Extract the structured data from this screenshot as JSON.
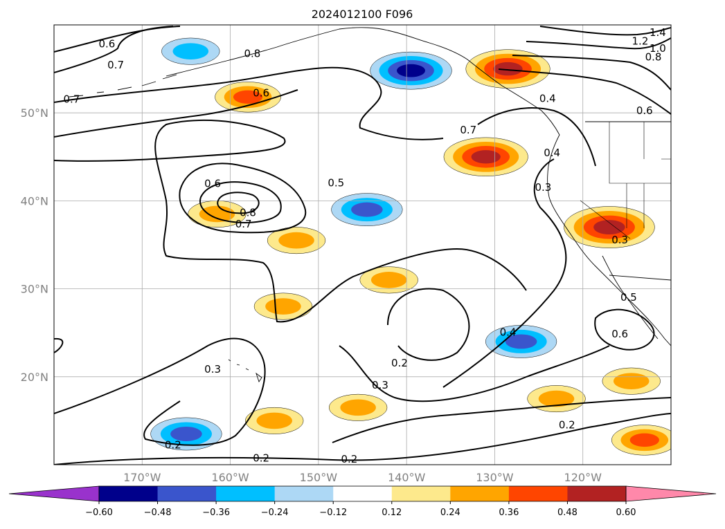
{
  "chart_data": {
    "type": "heatmap",
    "title": "2024012100 F096",
    "map": {
      "projection": "PlateCarree",
      "lon_range": [
        -180,
        -110
      ],
      "lat_range": [
        10,
        60
      ],
      "coastlines": true,
      "borders": true,
      "grid": true
    },
    "lat_ticks": [
      {
        "value": 20,
        "label": "20°N"
      },
      {
        "value": 30,
        "label": "30°N"
      },
      {
        "value": 40,
        "label": "40°N"
      },
      {
        "value": 50,
        "label": "50°N"
      }
    ],
    "lon_ticks": [
      {
        "value": -170,
        "label": "170°W"
      },
      {
        "value": -160,
        "label": "160°W"
      },
      {
        "value": -150,
        "label": "150°W"
      },
      {
        "value": -140,
        "label": "140°W"
      },
      {
        "value": -130,
        "label": "130°W"
      },
      {
        "value": -120,
        "label": "120°W"
      }
    ],
    "colorbar": {
      "extend": "both",
      "levels": [
        -0.72,
        -0.6,
        -0.48,
        -0.36,
        -0.24,
        -0.12,
        0.12,
        0.24,
        0.36,
        0.48,
        0.6,
        0.72
      ],
      "colors": [
        "#9932cc",
        "#00008b",
        "#3a55cc",
        "#00bfff",
        "#add8f5",
        "#ffffff",
        "#fde98c",
        "#ffa500",
        "#ff4500",
        "#b22222",
        "#ff88aa"
      ],
      "tick_labels": [
        "−0.60",
        "−0.48",
        "−0.36",
        "−0.24",
        "−0.12",
        "0.12",
        "0.24",
        "0.36",
        "0.48",
        "0.60"
      ]
    },
    "filled_anomalies": [
      {
        "lon": -158,
        "lat": 51.8,
        "value": 0.36
      },
      {
        "lon": -139.5,
        "lat": 54.8,
        "value": -0.48
      },
      {
        "lon": -131,
        "lat": 45,
        "value": 0.5
      },
      {
        "lon": -128.5,
        "lat": 55,
        "value": 0.5
      },
      {
        "lon": -144.5,
        "lat": 39,
        "value": -0.4
      },
      {
        "lon": -127,
        "lat": 24,
        "value": -0.4
      },
      {
        "lon": -117,
        "lat": 37,
        "value": 0.55
      },
      {
        "lon": -165,
        "lat": 13.5,
        "value": -0.4
      },
      {
        "lon": -142,
        "lat": 31,
        "value": 0.3
      },
      {
        "lon": -113,
        "lat": 12.8,
        "value": 0.36
      },
      {
        "lon": -114.5,
        "lat": 19.5,
        "value": 0.3
      },
      {
        "lon": -154,
        "lat": 28,
        "value": 0.3
      },
      {
        "lon": -145.5,
        "lat": 16.5,
        "value": 0.3
      },
      {
        "lon": -164.5,
        "lat": 57,
        "value": -0.3
      },
      {
        "lon": -161.5,
        "lat": 38.5,
        "value": 0.3
      },
      {
        "lon": -152.5,
        "lat": 35.5,
        "value": 0.3
      },
      {
        "lon": -155,
        "lat": 15,
        "value": 0.3
      },
      {
        "lon": -123,
        "lat": 17.5,
        "value": 0.3
      }
    ],
    "contour_labels": [
      {
        "text": "1.4",
        "lon": -111.5,
        "lat": 59.1
      },
      {
        "text": "1.2",
        "lon": -113.5,
        "lat": 58.1
      },
      {
        "text": "1.0",
        "lon": -111.5,
        "lat": 57.3
      },
      {
        "text": "0.8",
        "lon": -112,
        "lat": 56.3
      },
      {
        "text": "0.6",
        "lon": -174,
        "lat": 57.8
      },
      {
        "text": "0.7",
        "lon": -173,
        "lat": 55.4
      },
      {
        "text": "0.8",
        "lon": -157.5,
        "lat": 56.7
      },
      {
        "text": "0.7",
        "lon": -178,
        "lat": 51.5
      },
      {
        "text": "0.6",
        "lon": -156.5,
        "lat": 52.2
      },
      {
        "text": "0.7",
        "lon": -133,
        "lat": 48
      },
      {
        "text": "0.4",
        "lon": -124,
        "lat": 51.6
      },
      {
        "text": "0.6",
        "lon": -113,
        "lat": 50.2
      },
      {
        "text": "0.4",
        "lon": -123.5,
        "lat": 45.4
      },
      {
        "text": "0.3",
        "lon": -124.5,
        "lat": 41.5
      },
      {
        "text": "0.6",
        "lon": -162,
        "lat": 41.9
      },
      {
        "text": "0.5",
        "lon": -148,
        "lat": 42
      },
      {
        "text": "0.8",
        "lon": -158,
        "lat": 38.6
      },
      {
        "text": "0.7",
        "lon": -158.5,
        "lat": 37.3
      },
      {
        "text": "0.3",
        "lon": -115.8,
        "lat": 35.5
      },
      {
        "text": "0.5",
        "lon": -114.8,
        "lat": 29
      },
      {
        "text": "0.6",
        "lon": -115.8,
        "lat": 24.8
      },
      {
        "text": "0.4",
        "lon": -128.5,
        "lat": 25
      },
      {
        "text": "0.2",
        "lon": -140.8,
        "lat": 21.5
      },
      {
        "text": "0.3",
        "lon": -162,
        "lat": 20.8
      },
      {
        "text": "0.3",
        "lon": -143,
        "lat": 19
      },
      {
        "text": "0.2",
        "lon": -121.8,
        "lat": 14.5
      },
      {
        "text": "0.2",
        "lon": -166.5,
        "lat": 12.2
      },
      {
        "text": "0.2",
        "lon": -156.5,
        "lat": 10.7
      },
      {
        "text": "0.2",
        "lon": -146.5,
        "lat": 10.6
      }
    ]
  }
}
